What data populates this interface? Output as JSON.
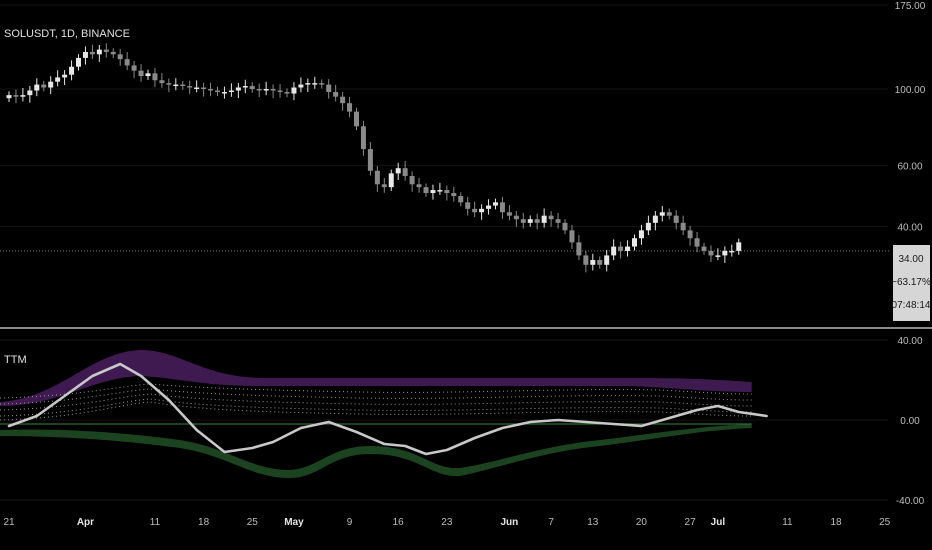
{
  "symbol": "SOLUSDT, 1D, BINANCE",
  "indicator_label": "TTM",
  "price_box": {
    "price": "34.00",
    "change": "−63.17%",
    "countdown": "07:48:14"
  },
  "x_ticks": [
    {
      "label": "21",
      "day": 0,
      "bold": false
    },
    {
      "label": "Apr",
      "day": 11,
      "bold": true
    },
    {
      "label": "11",
      "day": 21,
      "bold": false
    },
    {
      "label": "18",
      "day": 28,
      "bold": false
    },
    {
      "label": "25",
      "day": 35,
      "bold": false
    },
    {
      "label": "May",
      "day": 41,
      "bold": true
    },
    {
      "label": "9",
      "day": 49,
      "bold": false
    },
    {
      "label": "16",
      "day": 56,
      "bold": false
    },
    {
      "label": "23",
      "day": 63,
      "bold": false
    },
    {
      "label": "Jun",
      "day": 72,
      "bold": true
    },
    {
      "label": "7",
      "day": 78,
      "bold": false
    },
    {
      "label": "13",
      "day": 84,
      "bold": false
    },
    {
      "label": "20",
      "day": 91,
      "bold": false
    },
    {
      "label": "27",
      "day": 98,
      "bold": false
    },
    {
      "label": "Jul",
      "day": 102,
      "bold": true
    },
    {
      "label": "11",
      "day": 112,
      "bold": false
    },
    {
      "label": "18",
      "day": 119,
      "bold": false
    },
    {
      "label": "25",
      "day": 126,
      "bold": false
    }
  ],
  "chart_data": [
    {
      "type": "candlestick",
      "title": "SOLUSDT, 1D, BINANCE",
      "y_scale": "log",
      "ylim": [
        23,
        175
      ],
      "y_ticks": [
        "175.00",
        "100.00",
        "60.00",
        "40.00"
      ],
      "last_price": 34.0,
      "x_unit": "days since Mar 21",
      "closes": [
        96,
        95,
        96,
        99,
        103,
        101,
        105,
        108,
        110,
        116,
        123,
        128,
        126,
        130,
        128,
        126,
        122,
        117,
        113,
        109,
        111,
        106,
        104,
        103,
        103,
        102,
        101,
        101,
        100,
        99,
        98,
        98,
        99,
        101,
        102,
        100,
        99,
        100,
        99,
        98,
        97,
        101,
        103,
        104,
        104,
        103,
        98,
        95,
        91,
        86,
        78,
        67,
        58,
        53,
        52,
        57,
        59,
        56,
        53,
        52,
        50,
        51,
        51,
        50,
        49,
        47,
        45,
        44,
        45,
        46,
        47,
        44,
        43,
        42,
        41,
        42,
        41,
        43,
        42,
        41,
        39,
        36,
        33,
        31,
        32,
        31,
        33,
        35,
        34,
        35,
        37,
        39,
        41,
        43,
        44,
        43,
        41,
        39,
        37,
        35,
        34,
        33,
        33,
        34,
        34,
        36
      ]
    },
    {
      "type": "line",
      "title": "TTM",
      "ylim": [
        -40,
        40
      ],
      "y_ticks": [
        "40.00",
        "0.00",
        "-40.00"
      ],
      "x_unit": "days since Mar 21",
      "series": [
        {
          "name": "momentum",
          "points": [
            [
              0,
              -3
            ],
            [
              4,
              2
            ],
            [
              8,
              12
            ],
            [
              12,
              22
            ],
            [
              16,
              28
            ],
            [
              19,
              22
            ],
            [
              23,
              10
            ],
            [
              27,
              -5
            ],
            [
              31,
              -16
            ],
            [
              35,
              -14
            ],
            [
              38,
              -11
            ],
            [
              42,
              -4
            ],
            [
              46,
              -1
            ],
            [
              50,
              -6
            ],
            [
              54,
              -12
            ],
            [
              57,
              -13
            ],
            [
              60,
              -17
            ],
            [
              63,
              -15
            ],
            [
              67,
              -9
            ],
            [
              71,
              -4
            ],
            [
              75,
              -1
            ],
            [
              79,
              0
            ],
            [
              83,
              -1
            ],
            [
              87,
              -2
            ],
            [
              91,
              -3
            ],
            [
              95,
              1
            ],
            [
              99,
              5
            ],
            [
              102,
              7
            ],
            [
              105,
              4
            ],
            [
              109,
              2
            ]
          ]
        }
      ]
    }
  ]
}
